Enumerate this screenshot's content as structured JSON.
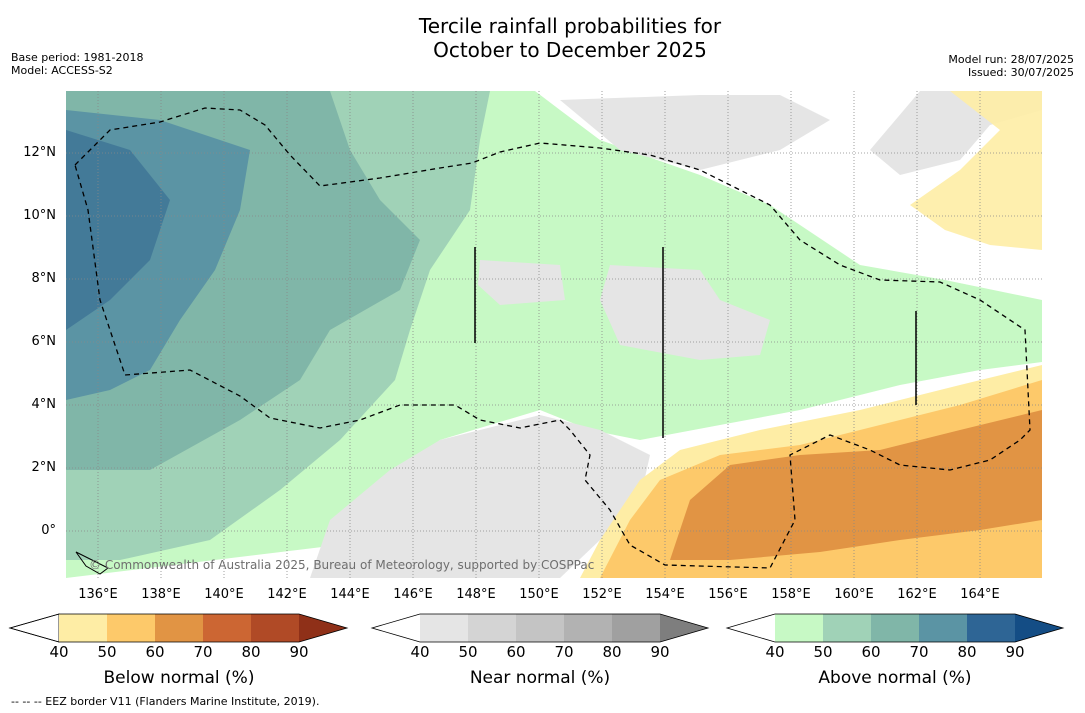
{
  "title": {
    "line1": "Tercile rainfall probabilities for",
    "line2": "October to December 2025"
  },
  "meta_left": {
    "base_period": "Base period: 1981-2018",
    "model": "Model: ACCESS-S2"
  },
  "meta_right": {
    "model_run": "Model run: 28/07/2025",
    "issued": "Issued: 30/07/2025"
  },
  "map": {
    "x_ticks": [
      "136°E",
      "138°E",
      "140°E",
      "142°E",
      "144°E",
      "146°E",
      "148°E",
      "150°E",
      "152°E",
      "154°E",
      "156°E",
      "158°E",
      "160°E",
      "162°E",
      "164°E"
    ],
    "y_ticks": [
      "12°N",
      "10°N",
      "8°N",
      "6°N",
      "4°N",
      "2°N",
      "0°"
    ],
    "copyright": "© Commonwealth of Australia 2025, Bureau of Meteorology, supported by COSPPac"
  },
  "colorbars": [
    {
      "label": "Below normal (%)",
      "ticks": [
        "40",
        "50",
        "60",
        "70",
        "80",
        "90"
      ],
      "colors": [
        "#ffffff",
        "#feeda5",
        "#fdc96a",
        "#e19444",
        "#cc6633",
        "#b04a26",
        "#8f3018"
      ]
    },
    {
      "label": "Near normal (%)",
      "ticks": [
        "40",
        "50",
        "60",
        "70",
        "80",
        "90"
      ],
      "colors": [
        "#ffffff",
        "#e5e5e5",
        "#d4d4d4",
        "#c4c4c4",
        "#b2b2b2",
        "#a0a0a0",
        "#7e7e7e"
      ]
    },
    {
      "label": "Above normal (%)",
      "ticks": [
        "40",
        "50",
        "60",
        "70",
        "80",
        "90"
      ],
      "colors": [
        "#ffffff",
        "#c7f9c5",
        "#a0d2b7",
        "#80b6a8",
        "#5b94a4",
        "#2e6595",
        "#144d85"
      ]
    }
  ],
  "footnote": "--  --  -- EEZ border V11 (Flanders Marine Institute, 2019)."
}
